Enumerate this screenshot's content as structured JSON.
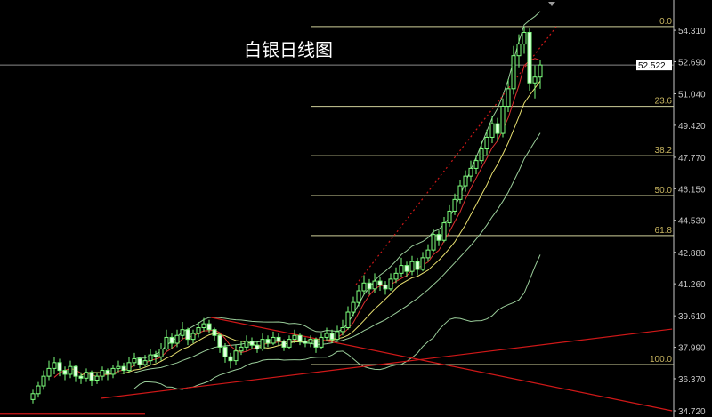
{
  "chart_data": {
    "type": "candlestick",
    "title": "白银日线图",
    "ylim": [
      34.4,
      55.87
    ],
    "y_ticks": [
      "54.310",
      "52.690",
      "51.040",
      "49.420",
      "47.770",
      "46.150",
      "44.530",
      "42.880",
      "41.260",
      "39.610",
      "37.990",
      "36.370",
      "34.720"
    ],
    "current_price": "52.522",
    "colors": {
      "background": "#000000",
      "candle": "#7dff7d",
      "bear_body": "#e6ffe6",
      "ma_fast": "#e03030",
      "ma_slow": "#e8e070",
      "bands": "#9acd9a",
      "trendline": "#d01818",
      "fib": "#cfcf9a",
      "fib_label": "#c8b560",
      "axis": "#c8c8c8"
    },
    "indicators": {
      "ma_fast_period": 5,
      "ma_slow_period": 10,
      "bollinger_period": 20,
      "bollinger_dev": 2
    },
    "ohlc": [
      [
        35.3,
        35.8,
        35.1,
        35.6
      ],
      [
        35.6,
        36.2,
        35.4,
        36.0
      ],
      [
        36.0,
        36.8,
        35.8,
        36.5
      ],
      [
        36.5,
        37.3,
        36.3,
        36.9
      ],
      [
        36.9,
        37.5,
        36.6,
        37.2
      ],
      [
        37.2,
        37.4,
        36.5,
        36.8
      ],
      [
        36.8,
        37.0,
        36.3,
        36.6
      ],
      [
        36.6,
        37.3,
        36.4,
        37.0
      ],
      [
        37.0,
        37.1,
        36.2,
        36.5
      ],
      [
        36.5,
        36.7,
        36.1,
        36.4
      ],
      [
        36.4,
        36.9,
        36.2,
        36.7
      ],
      [
        36.7,
        36.8,
        36.0,
        36.3
      ],
      [
        36.3,
        36.7,
        36.1,
        36.5
      ],
      [
        36.5,
        37.0,
        36.3,
        36.8
      ],
      [
        36.8,
        36.9,
        36.3,
        36.6
      ],
      [
        36.6,
        37.1,
        36.4,
        36.9
      ],
      [
        36.9,
        37.3,
        36.7,
        37.0
      ],
      [
        37.0,
        37.2,
        36.6,
        36.8
      ],
      [
        36.8,
        37.5,
        36.7,
        37.2
      ],
      [
        37.2,
        37.7,
        37.0,
        37.4
      ],
      [
        37.4,
        37.5,
        36.9,
        37.1
      ],
      [
        37.1,
        37.6,
        37.0,
        37.3
      ],
      [
        37.3,
        37.9,
        37.1,
        37.6
      ],
      [
        37.6,
        37.8,
        37.2,
        37.5
      ],
      [
        37.5,
        38.2,
        37.3,
        37.9
      ],
      [
        37.9,
        38.9,
        37.8,
        38.5
      ],
      [
        38.5,
        38.7,
        37.9,
        38.2
      ],
      [
        38.2,
        38.9,
        38.0,
        38.6
      ],
      [
        38.6,
        39.3,
        38.4,
        38.9
      ],
      [
        38.9,
        39.0,
        38.1,
        38.4
      ],
      [
        38.4,
        38.9,
        38.2,
        38.7
      ],
      [
        38.7,
        39.3,
        38.5,
        39.0
      ],
      [
        39.0,
        39.5,
        38.8,
        39.2
      ],
      [
        39.2,
        39.4,
        38.7,
        38.9
      ],
      [
        38.9,
        39.0,
        38.3,
        38.6
      ],
      [
        38.6,
        38.7,
        37.7,
        38.0
      ],
      [
        38.0,
        38.2,
        37.2,
        37.5
      ],
      [
        37.5,
        37.7,
        36.9,
        37.3
      ],
      [
        37.3,
        38.1,
        37.1,
        37.8
      ],
      [
        37.8,
        38.3,
        37.6,
        38.0
      ],
      [
        38.0,
        38.6,
        37.8,
        38.3
      ],
      [
        38.3,
        38.5,
        37.9,
        38.1
      ],
      [
        38.1,
        38.3,
        37.7,
        37.9
      ],
      [
        37.9,
        38.7,
        37.8,
        38.4
      ],
      [
        38.4,
        38.6,
        38.0,
        38.2
      ],
      [
        38.2,
        38.8,
        38.1,
        38.5
      ],
      [
        38.5,
        38.7,
        38.1,
        38.3
      ],
      [
        38.3,
        38.4,
        37.8,
        38.0
      ],
      [
        38.0,
        38.6,
        37.9,
        38.4
      ],
      [
        38.4,
        38.9,
        38.2,
        38.6
      ],
      [
        38.6,
        38.7,
        38.1,
        38.3
      ],
      [
        38.3,
        38.5,
        38.0,
        38.2
      ],
      [
        38.2,
        38.6,
        38.0,
        38.4
      ],
      [
        38.4,
        38.5,
        37.7,
        38.0
      ],
      [
        38.0,
        38.7,
        37.9,
        38.5
      ],
      [
        38.5,
        39.0,
        38.3,
        38.7
      ],
      [
        38.7,
        38.9,
        38.2,
        38.4
      ],
      [
        38.4,
        39.1,
        38.3,
        38.8
      ],
      [
        38.8,
        39.4,
        38.6,
        39.0
      ],
      [
        39.0,
        40.1,
        38.9,
        39.8
      ],
      [
        39.8,
        40.6,
        39.6,
        40.3
      ],
      [
        40.3,
        41.2,
        40.1,
        40.9
      ],
      [
        40.9,
        41.7,
        40.7,
        41.3
      ],
      [
        41.3,
        41.5,
        40.7,
        41.0
      ],
      [
        41.0,
        41.8,
        40.8,
        41.4
      ],
      [
        41.4,
        41.6,
        40.9,
        41.2
      ],
      [
        41.2,
        41.4,
        40.7,
        41.0
      ],
      [
        41.0,
        41.8,
        40.9,
        41.5
      ],
      [
        41.5,
        42.1,
        41.3,
        41.8
      ],
      [
        41.8,
        42.6,
        41.6,
        42.2
      ],
      [
        42.2,
        42.4,
        41.6,
        41.9
      ],
      [
        41.9,
        42.7,
        41.7,
        42.4
      ],
      [
        42.4,
        42.6,
        41.7,
        42.0
      ],
      [
        42.0,
        42.9,
        41.9,
        42.6
      ],
      [
        42.6,
        43.3,
        42.4,
        43.0
      ],
      [
        43.0,
        44.1,
        42.9,
        43.8
      ],
      [
        43.8,
        44.0,
        43.2,
        43.5
      ],
      [
        43.5,
        44.7,
        43.4,
        44.4
      ],
      [
        44.4,
        45.3,
        44.2,
        45.0
      ],
      [
        45.0,
        45.9,
        44.8,
        45.6
      ],
      [
        45.6,
        46.6,
        45.4,
        46.3
      ],
      [
        46.3,
        47.1,
        46.0,
        46.8
      ],
      [
        46.8,
        47.6,
        46.5,
        47.2
      ],
      [
        47.2,
        47.9,
        46.9,
        47.6
      ],
      [
        47.6,
        48.6,
        47.4,
        48.2
      ],
      [
        48.2,
        49.2,
        47.9,
        48.8
      ],
      [
        48.8,
        49.9,
        48.5,
        49.5
      ],
      [
        49.5,
        49.8,
        48.6,
        49.0
      ],
      [
        49.0,
        50.8,
        48.8,
        50.4
      ],
      [
        50.4,
        51.8,
        50.1,
        51.3
      ],
      [
        51.3,
        53.5,
        51.0,
        53.0
      ],
      [
        53.0,
        54.1,
        52.4,
        53.6
      ],
      [
        53.6,
        54.5,
        53.1,
        54.2
      ],
      [
        54.2,
        54.4,
        51.2,
        51.6
      ],
      [
        51.6,
        52.5,
        50.8,
        51.9
      ],
      [
        51.9,
        52.8,
        51.3,
        52.522
      ]
    ],
    "fibonacci": {
      "start_bar": 52,
      "high": 54.5,
      "low": 37.1,
      "levels": [
        {
          "ratio": 0.0,
          "label": "0.0"
        },
        {
          "ratio": 0.236,
          "label": "23.6"
        },
        {
          "ratio": 0.382,
          "label": "38.2"
        },
        {
          "ratio": 0.5,
          "label": "50.0"
        },
        {
          "ratio": 0.618,
          "label": "61.8"
        },
        {
          "ratio": 1.0,
          "label": "100.0"
        }
      ]
    },
    "trendlines": [
      {
        "from": [
          12.7,
          35.36
        ],
        "to": [
          119.7,
          38.93
        ],
        "style": "solid"
      },
      {
        "from": [
          33.3,
          39.53
        ],
        "to": [
          119.7,
          34.72
        ],
        "style": "solid"
      },
      {
        "from": [
          60.5,
          41.22
        ],
        "to": [
          98,
          54.49
        ],
        "style": "dotted"
      },
      {
        "from": [
          -6.2,
          34.55
        ],
        "to": [
          21,
          34.55
        ],
        "style": "solid"
      }
    ]
  }
}
